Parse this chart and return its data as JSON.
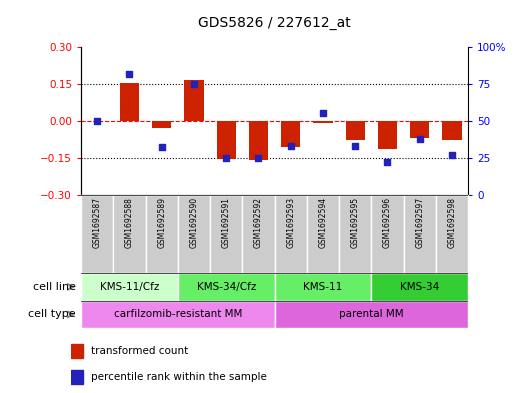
{
  "title": "GDS5826 / 227612_at",
  "samples": [
    "GSM1692587",
    "GSM1692588",
    "GSM1692589",
    "GSM1692590",
    "GSM1692591",
    "GSM1692592",
    "GSM1692593",
    "GSM1692594",
    "GSM1692595",
    "GSM1692596",
    "GSM1692597",
    "GSM1692598"
  ],
  "transformed_count": [
    0.0,
    0.155,
    -0.03,
    0.165,
    -0.155,
    -0.16,
    -0.105,
    -0.01,
    -0.08,
    -0.115,
    -0.07,
    -0.08
  ],
  "percentile_rank": [
    50,
    82,
    32,
    75,
    25,
    25,
    33,
    55,
    33,
    22,
    38,
    27
  ],
  "ylim_left": [
    -0.3,
    0.3
  ],
  "ylim_right": [
    0,
    100
  ],
  "yticks_left": [
    -0.3,
    -0.15,
    0,
    0.15,
    0.3
  ],
  "yticks_right": [
    0,
    25,
    50,
    75,
    100
  ],
  "hlines": [
    0.15,
    -0.15
  ],
  "bar_color": "#cc2200",
  "dot_color": "#2222bb",
  "cell_line_colors": [
    "#ccffcc",
    "#66ee66",
    "#66ee66",
    "#33cc33"
  ],
  "cell_line_groups": [
    {
      "label": "KMS-11/Cfz",
      "start": 0,
      "end": 3
    },
    {
      "label": "KMS-34/Cfz",
      "start": 3,
      "end": 6
    },
    {
      "label": "KMS-11",
      "start": 6,
      "end": 9
    },
    {
      "label": "KMS-34",
      "start": 9,
      "end": 12
    }
  ],
  "cell_type_colors": [
    "#ee88ee",
    "#dd66dd"
  ],
  "cell_type_groups": [
    {
      "label": "carfilzomib-resistant MM",
      "start": 0,
      "end": 6
    },
    {
      "label": "parental MM",
      "start": 6,
      "end": 12
    }
  ],
  "legend_items": [
    {
      "label": "transformed count",
      "color": "#cc2200"
    },
    {
      "label": "percentile rank within the sample",
      "color": "#2222bb"
    }
  ],
  "arrow_color": "#888888",
  "sample_bg_color": "#cccccc",
  "sample_border_color": "#ffffff"
}
